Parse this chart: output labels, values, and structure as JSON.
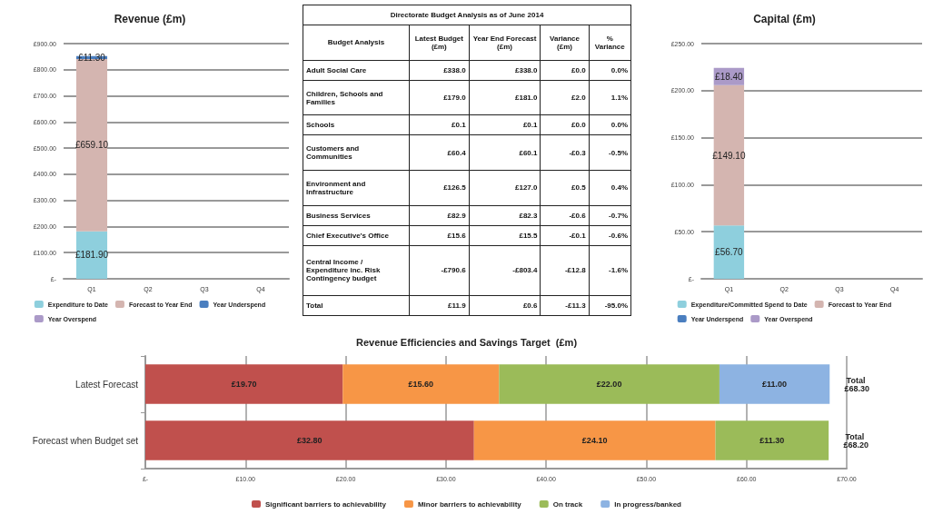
{
  "chart_data": [
    {
      "type": "bar",
      "title": "Revenue (£m)",
      "stacked": true,
      "categories": [
        "Q1",
        "Q2",
        "Q3",
        "Q4"
      ],
      "series": [
        {
          "name": "Expenditure to Date",
          "color": "#8ecfdd",
          "values": [
            181.9,
            null,
            null,
            null
          ],
          "value_labels": [
            "£181.90",
            null,
            null,
            null
          ]
        },
        {
          "name": "Forecast to Year End",
          "color": "#d4b5b0",
          "values": [
            659.1,
            null,
            null,
            null
          ],
          "value_labels": [
            "£659.10",
            null,
            null,
            null
          ]
        },
        {
          "name": "Year Underspend",
          "color": "#4a7ebf",
          "values": [
            11.3,
            null,
            null,
            null
          ],
          "value_labels": [
            "£11.30",
            null,
            null,
            null
          ]
        },
        {
          "name": "Year Overspend",
          "color": "#ab9ac8",
          "values": [
            null,
            null,
            null,
            null
          ]
        }
      ],
      "ylim": [
        0,
        900
      ],
      "yticks": [
        {
          "value": 0,
          "label": "£-"
        },
        {
          "value": 100,
          "label": "£100.00"
        },
        {
          "value": 200,
          "label": "£200.00"
        },
        {
          "value": 300,
          "label": "£300.00"
        },
        {
          "value": 400,
          "label": "£400.00"
        },
        {
          "value": 500,
          "label": "£500.00"
        },
        {
          "value": 600,
          "label": "£600.00"
        },
        {
          "value": 700,
          "label": "£700.00"
        },
        {
          "value": 800,
          "label": "£800.00"
        },
        {
          "value": 900,
          "label": "£900.00"
        }
      ],
      "grid": "y",
      "legend": "bottom"
    },
    {
      "type": "other",
      "title": "Directorate Budget Analysis as of June 2014",
      "categories": [
        "Budget Analysis",
        "Latest Budget (£m)",
        "Year End Forecast (£m)",
        "Variance (£m)",
        "% Variance"
      ],
      "y_categories": [
        "Adult Social Care",
        "Children, Schools and Families",
        "Schools",
        "Customers and Communities",
        "Environment and Infrastructure",
        "Business Services",
        "Chief Executive's Office",
        "Central Income / Expenditure inc. Risk Contingency budget",
        "Total"
      ],
      "cell_labels": [
        [
          "£338.0",
          "£338.0",
          "£0.0",
          "0.0%"
        ],
        [
          "£179.0",
          "£181.0",
          "£2.0",
          "1.1%"
        ],
        [
          "£0.1",
          "£0.1",
          "£0.0",
          "0.0%"
        ],
        [
          "£60.4",
          "£60.1",
          "-£0.3",
          "-0.5%"
        ],
        [
          "£126.5",
          "£127.0",
          "£0.5",
          "0.4%"
        ],
        [
          "£82.9",
          "£82.3",
          "-£0.6",
          "-0.7%"
        ],
        [
          "£15.6",
          "£15.5",
          "-£0.1",
          "-0.6%"
        ],
        [
          "-£790.6",
          "-£803.4",
          "-£12.8",
          "-1.6%"
        ],
        [
          "£11.9",
          "£0.6",
          "-£11.3",
          "-95.0%"
        ]
      ]
    },
    {
      "type": "bar",
      "title": "Capital (£m)",
      "stacked": true,
      "categories": [
        "Q1",
        "Q2",
        "Q3",
        "Q4"
      ],
      "series": [
        {
          "name": "Expenditure/Committed Spend to Date",
          "color": "#8ecfdd",
          "values": [
            56.7,
            null,
            null,
            null
          ],
          "value_labels": [
            "£56.70",
            null,
            null,
            null
          ]
        },
        {
          "name": "Forecast to Year End",
          "color": "#d4b5b0",
          "values": [
            149.1,
            null,
            null,
            null
          ],
          "value_labels": [
            "£149.10",
            null,
            null,
            null
          ]
        },
        {
          "name": "Year Underspend",
          "color": "#4a7ebf",
          "values": [
            null,
            null,
            null,
            null
          ]
        },
        {
          "name": "Year Overspend",
          "color": "#ab9ac8",
          "values": [
            18.4,
            null,
            null,
            null
          ],
          "value_labels": [
            "£18.40",
            null,
            null,
            null
          ]
        }
      ],
      "ylim": [
        0,
        250
      ],
      "yticks": [
        {
          "value": 0,
          "label": "£-"
        },
        {
          "value": 50,
          "label": "£50.00"
        },
        {
          "value": 100,
          "label": "£100.00"
        },
        {
          "value": 150,
          "label": "£150.00"
        },
        {
          "value": 200,
          "label": "£200.00"
        },
        {
          "value": 250,
          "label": "£250.00"
        }
      ],
      "grid": "y",
      "legend": "bottom"
    },
    {
      "type": "bar",
      "title": "Revenue Efficiencies and Savings Target  (£m)",
      "stacked": true,
      "orientation": "horizontal",
      "categories": [
        "Latest Forecast",
        "Forecast when Budget set"
      ],
      "series": [
        {
          "name": "Significant barriers to achievability",
          "color": "#c0504d",
          "values": [
            19.7,
            32.8
          ],
          "value_labels": [
            "£19.70",
            "£32.80"
          ]
        },
        {
          "name": "Minor barriers to achievability",
          "color": "#f79646",
          "values": [
            15.6,
            24.1
          ],
          "value_labels": [
            "£15.60",
            "£24.10"
          ]
        },
        {
          "name": "On track",
          "color": "#9bbb59",
          "values": [
            22.0,
            11.3
          ],
          "value_labels": [
            "£22.00",
            "£11.30"
          ]
        },
        {
          "name": "In progress/banked",
          "color": "#8db3e2",
          "values": [
            11.0,
            null
          ],
          "value_labels": [
            "£11.00",
            null
          ]
        }
      ],
      "totals": [
        "Total £68.30",
        "Total £68.20"
      ],
      "xlim": [
        0,
        70
      ],
      "xticks": [
        {
          "value": 0,
          "label": "£-"
        },
        {
          "value": 10,
          "label": "£10.00"
        },
        {
          "value": 20,
          "label": "£20.00"
        },
        {
          "value": 30,
          "label": "£30.00"
        },
        {
          "value": 40,
          "label": "£40.00"
        },
        {
          "value": 50,
          "label": "£50.00"
        },
        {
          "value": 60,
          "label": "£60.00"
        },
        {
          "value": 70,
          "label": "£70.00"
        }
      ],
      "grid": "x",
      "legend": "bottom"
    }
  ]
}
